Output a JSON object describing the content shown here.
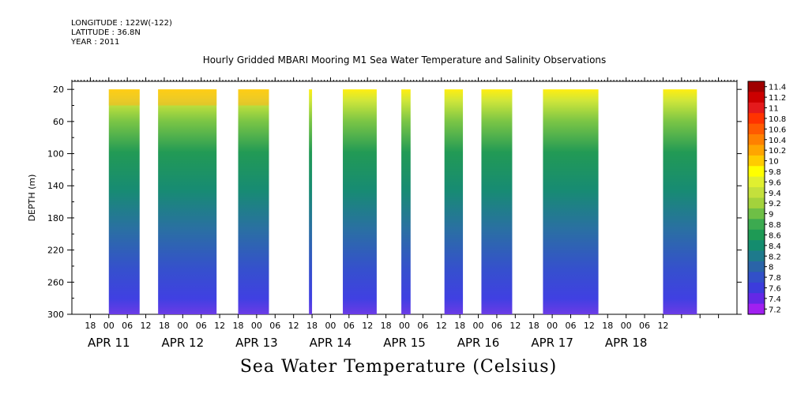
{
  "meta": {
    "longitude": "LONGITUDE : 122W(-122)",
    "latitude": "LATITUDE : 36.8N",
    "year": "YEAR : 2011"
  },
  "chart_data": {
    "type": "heatmap",
    "title": "Hourly Gridded MBARI Mooring M1 Sea Water Temperature and Salinity Observations",
    "bottom_title": "Sea Water Temperature (Celsius)",
    "ylabel": "DEPTH (m)",
    "y_ticks": [
      "20",
      "60",
      "100",
      "140",
      "180",
      "220",
      "260",
      "300"
    ],
    "ylim": [
      10,
      300
    ],
    "y_inverted": true,
    "x_hour_ticks": [
      "18",
      "00",
      "06",
      "12",
      "18",
      "00",
      "06",
      "12",
      "18",
      "00",
      "06",
      "12",
      "18",
      "00",
      "06",
      "12",
      "18",
      "00",
      "06",
      "12",
      "18",
      "00",
      "06",
      "12",
      "18",
      "00",
      "06",
      "12",
      "18",
      "00",
      "06",
      "12"
    ],
    "x_day_labels": [
      "APR 11",
      "APR 12",
      "APR 13",
      "APR 14",
      "APR 15",
      "APR 16",
      "APR 17",
      "APR 18"
    ],
    "x_range_hours": [
      -12,
      0,
      192,
      204
    ],
    "data_segments_hours": [
      [
        0,
        10
      ],
      [
        16,
        35
      ],
      [
        42,
        52
      ],
      [
        65,
        66
      ],
      [
        76,
        87
      ],
      [
        95,
        98
      ],
      [
        109,
        115
      ],
      [
        121,
        131
      ],
      [
        141,
        159
      ],
      [
        180,
        191
      ]
    ],
    "colorbar": {
      "labels": [
        "11.4",
        "11.2",
        "11",
        "10.8",
        "10.6",
        "10.4",
        "10.2",
        "10",
        "9.8",
        "9.6",
        "9.4",
        "9.2",
        "9",
        "8.8",
        "8.6",
        "8.4",
        "8.2",
        "8",
        "7.8",
        "7.6",
        "7.4",
        "7.2"
      ],
      "colors": [
        "#a00000",
        "#cc0000",
        "#e41a1c",
        "#ff3300",
        "#ff5a00",
        "#ff8000",
        "#ffa500",
        "#ffcc00",
        "#ffff00",
        "#e0ef30",
        "#c4e03c",
        "#a3d23c",
        "#6ebf46",
        "#3caa50",
        "#1e9a55",
        "#148c6e",
        "#1e7a8c",
        "#2a64a8",
        "#3250c8",
        "#3c3cdc",
        "#6428e6",
        "#a020f0"
      ]
    }
  }
}
